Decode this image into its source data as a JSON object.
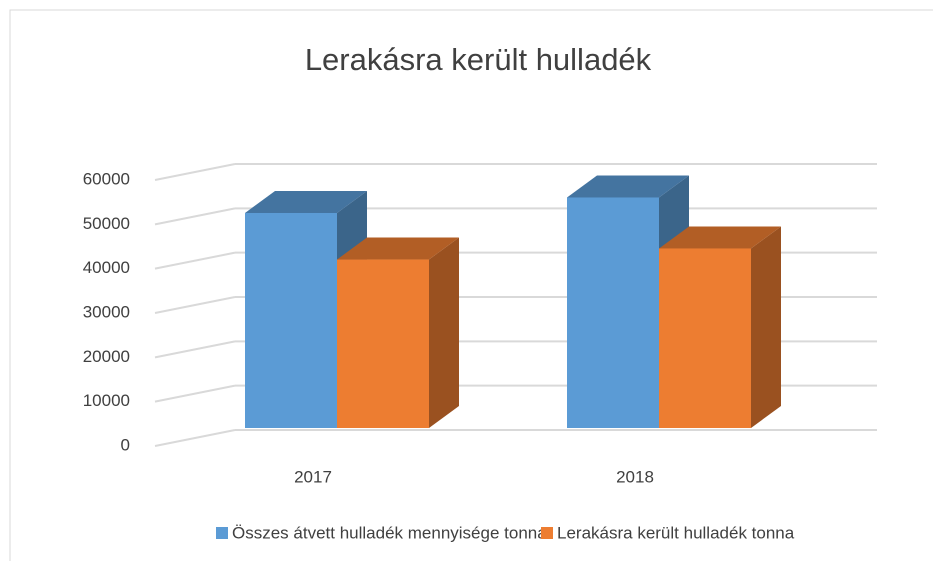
{
  "chart_data": {
    "type": "bar3d",
    "title": "Lerakásra került hulladék",
    "categories": [
      "2017",
      "2018"
    ],
    "series": [
      {
        "name": "Összes átvett hulladék mennyisége tonna",
        "color": "#5b9bd5",
        "values": [
          48500,
          52000
        ]
      },
      {
        "name": "Lerakásra került hulladék tonna",
        "color": "#ed7d31",
        "values": [
          38000,
          40500
        ]
      }
    ],
    "ylim": [
      0,
      60000
    ],
    "yticks": [
      0,
      10000,
      20000,
      30000,
      40000,
      50000,
      60000
    ],
    "grid": true,
    "legend": "bottom"
  }
}
